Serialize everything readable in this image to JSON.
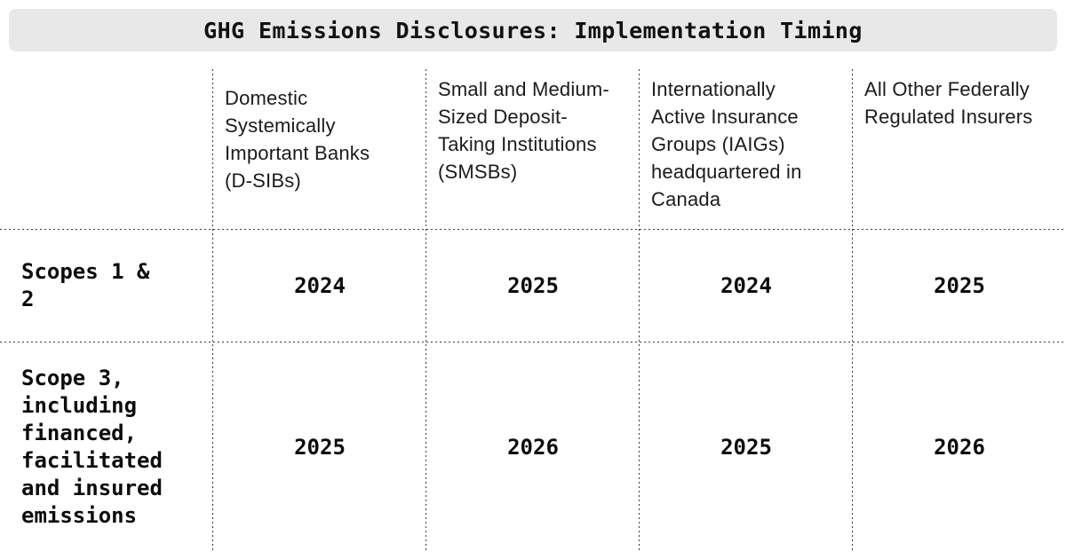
{
  "title": "GHG Emissions Disclosures: Implementation Timing",
  "chart_data": {
    "type": "table",
    "title": "GHG Emissions Disclosures: Implementation Timing",
    "columns": [
      "Domestic Systemically Important Banks (D-SIBs)",
      "Small and Medium-Sized Deposit-Taking Institutions (SMSBs)",
      "Internationally Active Insurance Groups (IAIGs) headquartered in Canada",
      "All Other Federally Regulated Insurers"
    ],
    "rows": [
      {
        "label": "Scopes 1 & 2",
        "values": [
          2024,
          2025,
          2024,
          2025
        ]
      },
      {
        "label": "Scope 3, including financed, facilitated and insured emissions",
        "values": [
          2025,
          2026,
          2025,
          2026
        ]
      }
    ],
    "layout": {
      "grid": "dotted",
      "header_position": "top",
      "row_labels_position": "left"
    }
  },
  "display": {
    "columns": [
      "Domestic\nSystemically\nImportant Banks\n(D-SIBs)",
      "Small and Medium-\nSized Deposit-\nTaking Institutions\n(SMSBs)",
      "Internationally\nActive Insurance\nGroups (IAIGs)\nheadquartered in\nCanada",
      "All Other Federally\nRegulated Insurers"
    ],
    "row_labels": [
      "Scopes 1 & 2",
      "Scope 3,\nincluding\nfinanced,\nfacilitated\nand insured\nemissions"
    ]
  },
  "colors": {
    "title_bar_background": "#e8e8e8",
    "title_text": "#111111",
    "body_text": "#1b1b1b",
    "mono_text": "#0c0c0c",
    "divider": "#3a3a3a",
    "page_background": "#ffffff"
  }
}
